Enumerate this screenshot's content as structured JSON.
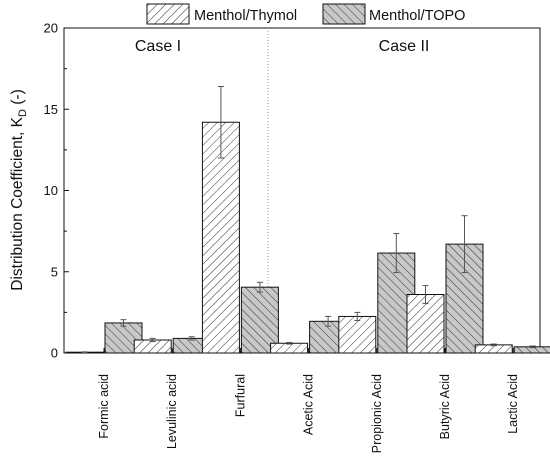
{
  "chart_data": {
    "type": "bar",
    "title": "",
    "xlabel": "",
    "ylabel": "Distribution Coefficient, K",
    "ylabel_sub": "D",
    "ylabel_suffix": " (-)",
    "ylim": [
      0,
      20
    ],
    "yticks": [
      0,
      5,
      10,
      15,
      20
    ],
    "grid": false,
    "legend_position": "top",
    "categories": [
      "Formic acid",
      "Levulinic acid",
      "Furfural",
      "Acetic Acid",
      "Propionic Acid",
      "Butyric Acid",
      "Lactic Acid"
    ],
    "groups": [
      {
        "label": "Case I",
        "categories": [
          "Formic acid",
          "Levulinic acid",
          "Furfural"
        ]
      },
      {
        "label": "Case II",
        "categories": [
          "Acetic Acid",
          "Propionic Acid",
          "Butyric Acid",
          "Lactic Acid"
        ]
      }
    ],
    "series": [
      {
        "name": "Menthol/Thymol",
        "fill": "#ffffff",
        "hatch": "forward-diagonal",
        "values": [
          0.05,
          0.8,
          14.2,
          0.6,
          2.25,
          3.6,
          0.5
        ],
        "errors": [
          0.02,
          0.1,
          2.2,
          0.05,
          0.25,
          0.55,
          0.05
        ]
      },
      {
        "name": "Menthol/TOPO",
        "fill": "#c8c8c8",
        "hatch": "back-diagonal",
        "values": [
          1.85,
          0.9,
          4.05,
          1.95,
          6.15,
          6.7,
          0.38
        ],
        "errors": [
          0.2,
          0.1,
          0.3,
          0.3,
          1.2,
          1.75,
          0.05
        ]
      }
    ]
  }
}
